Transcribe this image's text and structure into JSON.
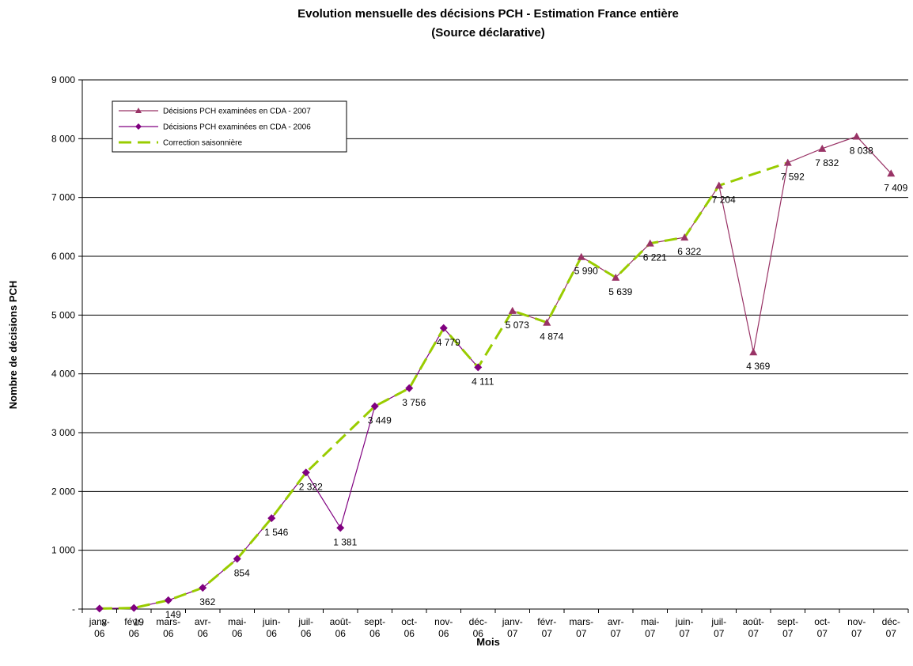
{
  "chart_data": {
    "type": "line",
    "title": "Evolution mensuelle des décisions PCH - Estimation France entière",
    "subtitle": "(Source déclarative)",
    "x_label": "Mois",
    "y_label": "Nombre de décisions PCH",
    "categories": [
      "janv-06",
      "févr-06",
      "mars-06",
      "avr-06",
      "mai-06",
      "juin-06",
      "juil-06",
      "août-06",
      "sept-06",
      "oct-06",
      "nov-06",
      "déc-06",
      "janv-07",
      "févr-07",
      "mars-07",
      "avr-07",
      "mai-07",
      "juin-07",
      "juil-07",
      "août-07",
      "sept-07",
      "oct-07",
      "nov-07",
      "déc-07"
    ],
    "ylim": [
      0,
      9000
    ],
    "yticks": [
      {
        "value": 0,
        "label": "-"
      },
      {
        "value": 1000,
        "label": "1 000"
      },
      {
        "value": 2000,
        "label": "2 000"
      },
      {
        "value": 3000,
        "label": "3 000"
      },
      {
        "value": 4000,
        "label": "4 000"
      },
      {
        "value": 5000,
        "label": "5 000"
      },
      {
        "value": 6000,
        "label": "6 000"
      },
      {
        "value": 7000,
        "label": "7 000"
      },
      {
        "value": 8000,
        "label": "8 000"
      },
      {
        "value": 9000,
        "label": "9 000"
      }
    ],
    "grid": true,
    "legend": "top-left",
    "series": [
      {
        "name": "Décisions PCH examinées en CDA - 2007",
        "color": "#993366",
        "marker": "triangle",
        "values": [
          null,
          null,
          null,
          null,
          null,
          null,
          null,
          null,
          null,
          null,
          null,
          null,
          5073,
          4874,
          5990,
          5639,
          6221,
          6322,
          7204,
          4369,
          7592,
          7832,
          8038,
          7409
        ],
        "value_labels": [
          null,
          null,
          null,
          null,
          null,
          null,
          null,
          null,
          null,
          null,
          null,
          null,
          "5 073",
          "4 874",
          "5 990",
          "5 639",
          "6 221",
          "6 322",
          "7 204",
          "4 369",
          "7 592",
          "7 832",
          "8 038",
          "7 409"
        ]
      },
      {
        "name": "Décisions PCH examinées en CDA - 2006",
        "color": "#800080",
        "marker": "diamond",
        "values": [
          8,
          19,
          149,
          362,
          854,
          1546,
          2322,
          1381,
          3449,
          3756,
          4779,
          4111,
          null,
          null,
          null,
          null,
          null,
          null,
          null,
          null,
          null,
          null,
          null,
          null
        ],
        "value_labels": [
          "8",
          "19",
          "149",
          "362",
          "854",
          "1 546",
          "2 322",
          "1 381",
          "3 449",
          "3 756",
          "4 779",
          "4 111",
          null,
          null,
          null,
          null,
          null,
          null,
          null,
          null,
          null,
          null,
          null,
          null
        ]
      },
      {
        "name": "Correction saisonnière",
        "color": "#99cc00",
        "marker": "none",
        "dashed": true,
        "values": [
          8,
          19,
          149,
          362,
          854,
          1546,
          2322,
          2886,
          3449,
          3756,
          4779,
          4111,
          5073,
          4874,
          5990,
          5639,
          6221,
          6322,
          7204,
          7398,
          7592,
          null,
          null,
          null
        ]
      }
    ]
  }
}
